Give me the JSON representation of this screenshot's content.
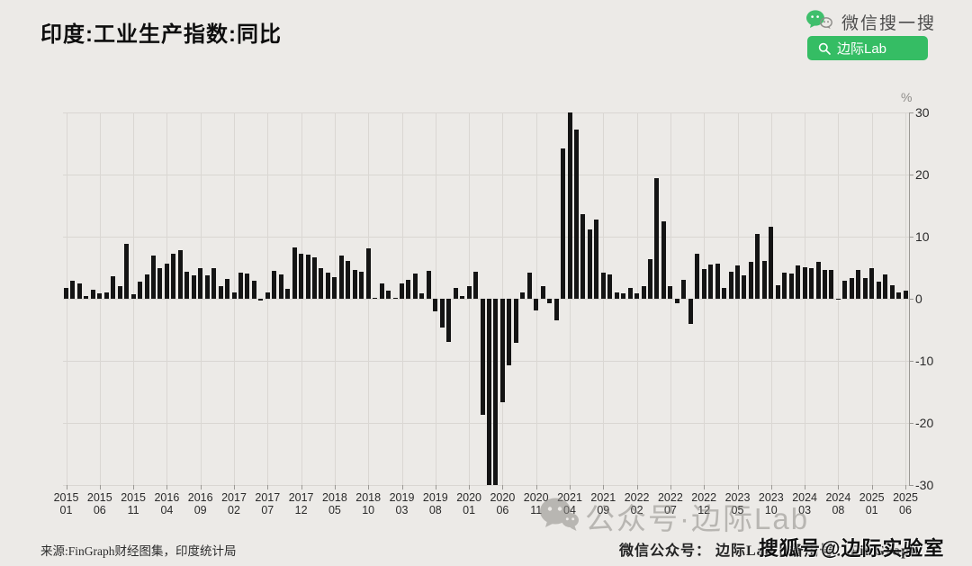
{
  "page": {
    "background": "#ECEAE7"
  },
  "header": {
    "title": "印度:工业生产指数:同比",
    "wechat_search_label": "微信搜一搜",
    "search_button_label": "边际Lab",
    "brand_green": "#35BD64"
  },
  "chart_data": {
    "type": "bar",
    "title": "印度:工业生产指数:同比",
    "ylabel": "%",
    "ylim": [
      -30,
      30
    ],
    "y_ticks": [
      30,
      20,
      10,
      0,
      -10,
      -20,
      -30
    ],
    "grid": true,
    "legend": "none",
    "bar_color": "#141414",
    "start_month": "2015-01",
    "end_month": "2025-06",
    "x_tick_labels": [
      [
        "2015",
        "01"
      ],
      [
        "2015",
        "06"
      ],
      [
        "2015",
        "11"
      ],
      [
        "2016",
        "04"
      ],
      [
        "2016",
        "09"
      ],
      [
        "2017",
        "02"
      ],
      [
        "2017",
        "07"
      ],
      [
        "2017",
        "12"
      ],
      [
        "2018",
        "05"
      ],
      [
        "2018",
        "10"
      ],
      [
        "2019",
        "03"
      ],
      [
        "2019",
        "08"
      ],
      [
        "2020",
        "01"
      ],
      [
        "2020",
        "06"
      ],
      [
        "2020",
        "11"
      ],
      [
        "2021",
        "04"
      ],
      [
        "2021",
        "09"
      ],
      [
        "2022",
        "02"
      ],
      [
        "2022",
        "07"
      ],
      [
        "2022",
        "12"
      ],
      [
        "2023",
        "05"
      ],
      [
        "2023",
        "10"
      ],
      [
        "2024",
        "03"
      ],
      [
        "2024",
        "08"
      ],
      [
        "2025",
        "01"
      ],
      [
        "2025",
        "06"
      ]
    ],
    "values": [
      1.7,
      2.9,
      2.4,
      0.4,
      1.5,
      0.9,
      1.0,
      3.6,
      2.0,
      8.8,
      0.7,
      2.7,
      3.9,
      7.0,
      5.0,
      5.6,
      7.2,
      7.8,
      4.3,
      3.7,
      4.9,
      3.7,
      4.9,
      2.1,
      3.2,
      1.0,
      4.2,
      4.0,
      2.9,
      -0.3,
      1.0,
      4.5,
      3.9,
      1.6,
      8.3,
      7.2,
      7.1,
      6.6,
      5.0,
      4.2,
      3.5,
      7.0,
      6.1,
      4.7,
      4.3,
      8.1,
      0.2,
      2.4,
      1.3,
      0.2,
      2.4,
      3.0,
      4.1,
      0.9,
      4.5,
      -2.1,
      -4.6,
      -7.0,
      1.8,
      0.4,
      2.1,
      4.4,
      -18.7,
      -30.0,
      -30.0,
      -16.6,
      -10.7,
      -7.1,
      1.0,
      4.2,
      -1.9,
      2.1,
      -0.7,
      -3.5,
      24.2,
      30.0,
      27.2,
      13.6,
      11.1,
      12.7,
      4.2,
      3.9,
      1.0,
      0.8,
      1.7,
      0.9,
      2.0,
      6.4,
      19.4,
      12.4,
      2.0,
      -0.7,
      3.0,
      -4.0,
      7.3,
      4.8,
      5.5,
      5.7,
      1.7,
      4.3,
      5.4,
      3.8,
      5.9,
      10.5,
      6.1,
      11.6,
      2.2,
      4.2,
      4.0,
      5.4,
      5.1,
      5.0,
      6.0,
      4.7,
      4.7,
      -0.1,
      2.9,
      3.4,
      4.7,
      3.4,
      5.0,
      2.7,
      3.9,
      2.2,
      1.0,
      1.3
    ]
  },
  "footer": {
    "source": "来源:FinGraph财经图集，印度统计局",
    "account_line": "微信公众号： 边际Lab丨备用号：FinGraph",
    "gray_watermark": "公众号·边际Lab",
    "sohu_watermark": "搜狐号@边际实验室"
  }
}
